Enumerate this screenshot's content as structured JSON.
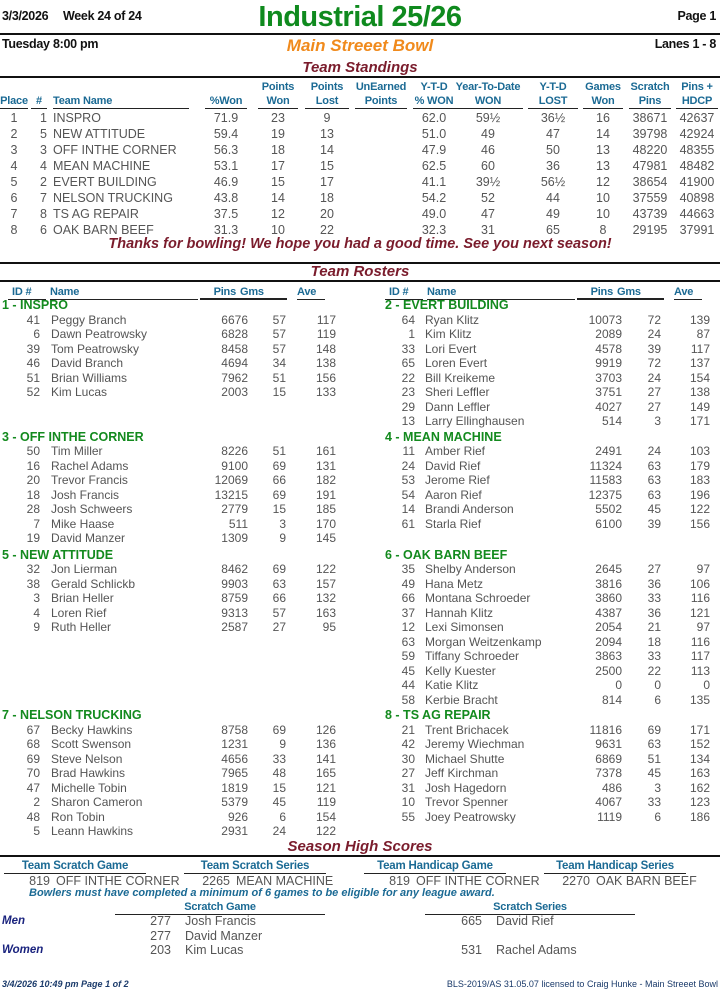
{
  "header": {
    "date": "3/3/2026",
    "week": "Week 24 of 24",
    "title": "Industrial 25/26",
    "page": "Page 1",
    "day": "Tuesday",
    "time": "8:00 pm",
    "venue": "Main Streeet Bowl",
    "lanes": "Lanes 1 - 8"
  },
  "standings": {
    "title": "Team Standings",
    "columns": {
      "place": [
        "",
        "Place"
      ],
      "num": [
        "",
        "#"
      ],
      "team": [
        "",
        "Team Name"
      ],
      "pct_won": [
        "",
        "%Won"
      ],
      "points_won": [
        "Points",
        "Won"
      ],
      "points_lost": [
        "Points",
        "Lost"
      ],
      "unearned": [
        "UnEarned",
        "Points"
      ],
      "ytd_pct": [
        "Y-T-D",
        "% WON"
      ],
      "ytd_won": [
        "Year-To-Date",
        "WON"
      ],
      "ytd_lost": [
        "Y-T-D",
        "LOST"
      ],
      "games_won": [
        "Games",
        "Won"
      ],
      "scratch_pins": [
        "Scratch",
        "Pins"
      ],
      "pins_hdcp": [
        "Pins +",
        "HDCP"
      ]
    },
    "rows": [
      {
        "place": "1",
        "num": "1",
        "team": "INSPRO",
        "pct_won": "71.9",
        "points_won": "23",
        "points_lost": "9",
        "unearned": "",
        "ytd_pct": "62.0",
        "ytd_won": "59½",
        "ytd_lost": "36½",
        "games_won": "16",
        "scratch_pins": "38671",
        "pins_hdcp": "42637"
      },
      {
        "place": "2",
        "num": "5",
        "team": "NEW ATTITUDE",
        "pct_won": "59.4",
        "points_won": "19",
        "points_lost": "13",
        "unearned": "",
        "ytd_pct": "51.0",
        "ytd_won": "49",
        "ytd_lost": "47",
        "games_won": "14",
        "scratch_pins": "39798",
        "pins_hdcp": "42924"
      },
      {
        "place": "3",
        "num": "3",
        "team": "OFF INTHE CORNER",
        "pct_won": "56.3",
        "points_won": "18",
        "points_lost": "14",
        "unearned": "",
        "ytd_pct": "47.9",
        "ytd_won": "46",
        "ytd_lost": "50",
        "games_won": "13",
        "scratch_pins": "48220",
        "pins_hdcp": "48355"
      },
      {
        "place": "4",
        "num": "4",
        "team": "MEAN MACHINE",
        "pct_won": "53.1",
        "points_won": "17",
        "points_lost": "15",
        "unearned": "",
        "ytd_pct": "62.5",
        "ytd_won": "60",
        "ytd_lost": "36",
        "games_won": "13",
        "scratch_pins": "47981",
        "pins_hdcp": "48482"
      },
      {
        "place": "5",
        "num": "2",
        "team": "EVERT BUILDING",
        "pct_won": "46.9",
        "points_won": "15",
        "points_lost": "17",
        "unearned": "",
        "ytd_pct": "41.1",
        "ytd_won": "39½",
        "ytd_lost": "56½",
        "games_won": "12",
        "scratch_pins": "38654",
        "pins_hdcp": "41900"
      },
      {
        "place": "6",
        "num": "7",
        "team": "NELSON TRUCKING",
        "pct_won": "43.8",
        "points_won": "14",
        "points_lost": "18",
        "unearned": "",
        "ytd_pct": "54.2",
        "ytd_won": "52",
        "ytd_lost": "44",
        "games_won": "10",
        "scratch_pins": "37559",
        "pins_hdcp": "40898"
      },
      {
        "place": "7",
        "num": "8",
        "team": "TS AG REPAIR",
        "pct_won": "37.5",
        "points_won": "12",
        "points_lost": "20",
        "unearned": "",
        "ytd_pct": "49.0",
        "ytd_won": "47",
        "ytd_lost": "49",
        "games_won": "10",
        "scratch_pins": "43739",
        "pins_hdcp": "44663"
      },
      {
        "place": "8",
        "num": "6",
        "team": "OAK BARN BEEF",
        "pct_won": "31.3",
        "points_won": "10",
        "points_lost": "22",
        "unearned": "",
        "ytd_pct": "32.3",
        "ytd_won": "31",
        "ytd_lost": "65",
        "games_won": "8",
        "scratch_pins": "29195",
        "pins_hdcp": "37991"
      }
    ],
    "message": "Thanks for bowling! We hope you had a good time. See you next season!"
  },
  "rosters": {
    "title": "Team Rosters",
    "columns": {
      "id": "ID #",
      "name": "Name",
      "pins": "Pins",
      "gms": "Gms",
      "ave": "Ave"
    },
    "teams": [
      {
        "name": "1 - INSPRO",
        "bowlers": [
          [
            "41",
            "Peggy Branch",
            "6676",
            "57",
            "117"
          ],
          [
            "6",
            "Dawn Peatrowsky",
            "6828",
            "57",
            "119"
          ],
          [
            "39",
            "Tom Peatrowsky",
            "8458",
            "57",
            "148"
          ],
          [
            "46",
            "David Branch",
            "4694",
            "34",
            "138"
          ],
          [
            "51",
            "Brian Williams",
            "7962",
            "51",
            "156"
          ],
          [
            "52",
            "Kim Lucas",
            "2003",
            "15",
            "133"
          ]
        ]
      },
      {
        "name": "2 - EVERT BUILDING",
        "bowlers": [
          [
            "64",
            "Ryan Klitz",
            "10073",
            "72",
            "139"
          ],
          [
            "1",
            "Kim Klitz",
            "2089",
            "24",
            "87"
          ],
          [
            "33",
            "Lori Evert",
            "4578",
            "39",
            "117"
          ],
          [
            "65",
            "Loren Evert",
            "9919",
            "72",
            "137"
          ],
          [
            "22",
            "Bill Kreikeme",
            "3703",
            "24",
            "154"
          ],
          [
            "23",
            "Sheri Leffler",
            "3751",
            "27",
            "138"
          ],
          [
            "29",
            "Dann Leffler",
            "4027",
            "27",
            "149"
          ],
          [
            "13",
            "Larry Ellinghausen",
            "514",
            "3",
            "171"
          ]
        ]
      },
      {
        "name": "3 - OFF INTHE CORNER",
        "bowlers": [
          [
            "50",
            "Tim Miller",
            "8226",
            "51",
            "161"
          ],
          [
            "16",
            "Rachel Adams",
            "9100",
            "69",
            "131"
          ],
          [
            "20",
            "Trevor Francis",
            "12069",
            "66",
            "182"
          ],
          [
            "18",
            "Josh Francis",
            "13215",
            "69",
            "191"
          ],
          [
            "28",
            "Josh Schweers",
            "2779",
            "15",
            "185"
          ],
          [
            "7",
            "Mike Haase",
            "511",
            "3",
            "170"
          ],
          [
            "19",
            "David Manzer",
            "1309",
            "9",
            "145"
          ]
        ]
      },
      {
        "name": "4 - MEAN MACHINE",
        "bowlers": [
          [
            "11",
            "Amber Rief",
            "2491",
            "24",
            "103"
          ],
          [
            "24",
            "David Rief",
            "11324",
            "63",
            "179"
          ],
          [
            "53",
            "Jerome Rief",
            "11583",
            "63",
            "183"
          ],
          [
            "54",
            "Aaron Rief",
            "12375",
            "63",
            "196"
          ],
          [
            "14",
            "Brandi Anderson",
            "5502",
            "45",
            "122"
          ],
          [
            "61",
            "Starla Rief",
            "6100",
            "39",
            "156"
          ]
        ]
      },
      {
        "name": "5 - NEW ATTITUDE",
        "bowlers": [
          [
            "32",
            "Jon Lierman",
            "8462",
            "69",
            "122"
          ],
          [
            "38",
            "Gerald Schlickb",
            "9903",
            "63",
            "157"
          ],
          [
            "3",
            "Brian Heller",
            "8759",
            "66",
            "132"
          ],
          [
            "4",
            "Loren Rief",
            "9313",
            "57",
            "163"
          ],
          [
            "9",
            "Ruth Heller",
            "2587",
            "27",
            "95"
          ]
        ]
      },
      {
        "name": "6 - OAK BARN BEEF",
        "bowlers": [
          [
            "35",
            "Shelby Anderson",
            "2645",
            "27",
            "97"
          ],
          [
            "49",
            "Hana Metz",
            "3816",
            "36",
            "106"
          ],
          [
            "66",
            "Montana Schroeder",
            "3860",
            "33",
            "116"
          ],
          [
            "37",
            "Hannah Klitz",
            "4387",
            "36",
            "121"
          ],
          [
            "12",
            "Lexi Simonsen",
            "2054",
            "21",
            "97"
          ],
          [
            "63",
            "Morgan Weitzenkamp",
            "2094",
            "18",
            "116"
          ],
          [
            "59",
            "Tiffany Schroeder",
            "3863",
            "33",
            "117"
          ],
          [
            "45",
            "Kelly Kuester",
            "2500",
            "22",
            "113"
          ],
          [
            "44",
            "Katie Klitz",
            "0",
            "0",
            "0"
          ],
          [
            "58",
            "Kerbie Bracht",
            "814",
            "6",
            "135"
          ]
        ]
      },
      {
        "name": "7 - NELSON TRUCKING",
        "bowlers": [
          [
            "67",
            "Becky Hawkins",
            "8758",
            "69",
            "126"
          ],
          [
            "68",
            "Scott Swenson",
            "1231",
            "9",
            "136"
          ],
          [
            "69",
            "Steve Nelson",
            "4656",
            "33",
            "141"
          ],
          [
            "70",
            "Brad Hawkins",
            "7965",
            "48",
            "165"
          ],
          [
            "47",
            "Michelle Tobin",
            "1819",
            "15",
            "121"
          ],
          [
            "2",
            "Sharon Cameron",
            "5379",
            "45",
            "119"
          ],
          [
            "48",
            "Ron Tobin",
            "926",
            "6",
            "154"
          ],
          [
            "5",
            "Leann Hawkins",
            "2931",
            "24",
            "122"
          ]
        ]
      },
      {
        "name": "8 - TS AG REPAIR",
        "bowlers": [
          [
            "21",
            "Trent Brichacek",
            "11816",
            "69",
            "171"
          ],
          [
            "42",
            "Jeremy Wiechman",
            "9631",
            "63",
            "152"
          ],
          [
            "30",
            "Michael Shutte",
            "6869",
            "51",
            "134"
          ],
          [
            "27",
            "Jeff Kirchman",
            "7378",
            "45",
            "163"
          ],
          [
            "31",
            "Josh Hagedorn",
            "486",
            "3",
            "162"
          ],
          [
            "10",
            "Trevor Spenner",
            "4067",
            "33",
            "123"
          ],
          [
            "55",
            "Joey Peatrowsky",
            "1119",
            "6",
            "186"
          ]
        ]
      }
    ]
  },
  "season_high": {
    "title": "Season High Scores",
    "team_awards": [
      {
        "label": "Team Scratch Game",
        "score": "819",
        "team": "OFF INTHE CORNER"
      },
      {
        "label": "Team Scratch Series",
        "score": "2265",
        "team": "MEAN MACHINE"
      },
      {
        "label": "Team Handicap Game",
        "score": "819",
        "team": "OFF INTHE CORNER"
      },
      {
        "label": "Team Handicap Series",
        "score": "2270",
        "team": "OAK BARN BEEF"
      }
    ],
    "note": "Bowlers must have completed a minimum of 6 games to be eligible for any league award.",
    "scratch_game_label": "Scratch Game",
    "scratch_series_label": "Scratch Series",
    "men_label": "Men",
    "women_label": "Women",
    "men_game": [
      {
        "score": "277",
        "name": "Josh Francis"
      },
      {
        "score": "277",
        "name": "David Manzer"
      }
    ],
    "men_series": [
      {
        "score": "665",
        "name": "David Rief"
      }
    ],
    "women_game": [
      {
        "score": "203",
        "name": "Kim Lucas"
      }
    ],
    "women_series": [
      {
        "score": "531",
        "name": "Rachel Adams"
      }
    ]
  },
  "footer": {
    "printed": "3/4/2026  10:49 pm  Page 1 of 2",
    "license": "BLS-2019/AS 31.05.07 licensed to Craig Hunke - Main Streeet Bowl"
  },
  "colors": {
    "title": "#0f8a1e",
    "venue": "#f08a1c",
    "section": "#7a1c2c",
    "column_header": "#1b6a94",
    "team_header": "#138a1e"
  }
}
